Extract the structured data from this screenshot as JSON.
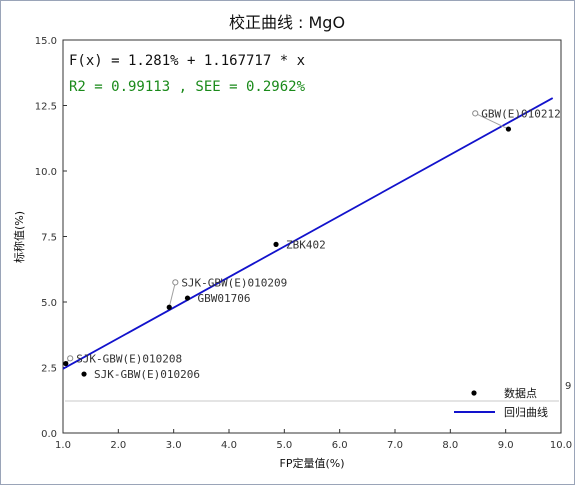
{
  "chart_data": {
    "type": "scatter",
    "title": "校正曲线 : MgO",
    "xlabel": "FP定量值(%)",
    "ylabel": "标称值(%)",
    "xlim": [
      1.0,
      10.0
    ],
    "ylim": [
      0.0,
      15.0
    ],
    "x_ticks": [
      "1.0",
      "2.0",
      "3.0",
      "4.0",
      "5.0",
      "6.0",
      "7.0",
      "8.0",
      "9.0",
      "10.0"
    ],
    "y_ticks": [
      "0.0",
      "2.5",
      "5.0",
      "7.5",
      "10.0",
      "12.5",
      "15.0"
    ],
    "grid": false,
    "regression": {
      "equation": "F(x) = 1.281% + 1.167717 * x",
      "stats": "R2 = 0.99113 , SEE = 0.2962%",
      "intercept": 1.281,
      "slope": 1.167717
    },
    "points": [
      {
        "label": "GBW(E)010212",
        "x": 9.05,
        "y": 11.6,
        "ref_x": 8.45,
        "ref_y": 12.2
      },
      {
        "label": "ZBK402",
        "x": 4.85,
        "y": 7.2
      },
      {
        "label": "SJK-GBW(E)010209",
        "x": 2.92,
        "y": 4.8,
        "ref_x": 3.03,
        "ref_y": 5.75
      },
      {
        "label": "GBW01706",
        "x": 3.25,
        "y": 5.15
      },
      {
        "label": "SJK-GBW(E)010208",
        "x": 1.05,
        "y": 2.65,
        "ref_x": 1.13,
        "ref_y": 2.85
      },
      {
        "label": "SJK-GBW(E)010206",
        "x": 1.38,
        "y": 2.25
      }
    ],
    "edge_mark": "9",
    "legend": {
      "position": "bottom-right",
      "items": [
        {
          "label": "数据点",
          "kind": "point"
        },
        {
          "label": "回归曲线",
          "kind": "line"
        }
      ]
    },
    "colors": {
      "line": "#1212cc",
      "point": "#000000",
      "equation_text": "#111111",
      "stats_text": "#1a8a1a",
      "leader": "#a0a0a0",
      "baseline": "#c8c8c8"
    }
  }
}
